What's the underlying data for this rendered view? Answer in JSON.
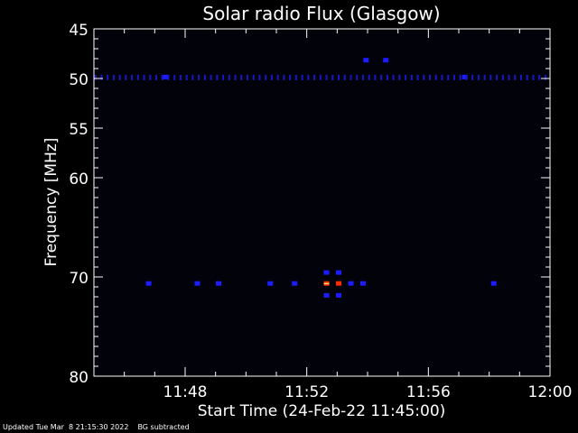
{
  "chart_data": {
    "type": "heatmap",
    "title": "Solar radio Flux (Glasgow)",
    "xlabel": "Start Time (24-Feb-22 11:45:00)",
    "ylabel": "Frequency [MHz]",
    "x_unit": "minutes after 11:45:00",
    "xlim": [
      0,
      15
    ],
    "ylim": [
      80,
      45
    ],
    "x_ticks": [
      {
        "value": 3,
        "label": "11:48"
      },
      {
        "value": 7,
        "label": "11:52"
      },
      {
        "value": 11,
        "label": "11:56"
      },
      {
        "value": 15,
        "label": "12:00"
      }
    ],
    "y_ticks": [
      45,
      50,
      55,
      60,
      70,
      80
    ],
    "background_color": "#000000",
    "colors": {
      "weak": "#1c1cff",
      "strong": "#ff2a00",
      "peak": "#ffe060"
    },
    "band_50mhz_intensity": "weak",
    "cells": [
      {
        "t": 8.95,
        "f": 48.2,
        "i": 1
      },
      {
        "t": 9.6,
        "f": 48.2,
        "i": 1
      },
      {
        "t": 2.35,
        "f": 49.9,
        "i": 1
      },
      {
        "t": 12.2,
        "f": 49.9,
        "i": 1
      },
      {
        "t": 1.8,
        "f": 70.7,
        "i": 1
      },
      {
        "t": 3.4,
        "f": 70.7,
        "i": 1
      },
      {
        "t": 4.1,
        "f": 70.7,
        "i": 1
      },
      {
        "t": 5.8,
        "f": 70.7,
        "i": 1
      },
      {
        "t": 6.6,
        "f": 70.7,
        "i": 1
      },
      {
        "t": 7.65,
        "f": 69.6,
        "i": 1
      },
      {
        "t": 7.65,
        "f": 70.7,
        "i": 3
      },
      {
        "t": 7.65,
        "f": 71.9,
        "i": 1
      },
      {
        "t": 8.05,
        "f": 69.6,
        "i": 1
      },
      {
        "t": 8.05,
        "f": 70.7,
        "i": 2
      },
      {
        "t": 8.05,
        "f": 71.9,
        "i": 1
      },
      {
        "t": 8.45,
        "f": 70.7,
        "i": 1
      },
      {
        "t": 8.85,
        "f": 70.7,
        "i": 1
      },
      {
        "t": 13.15,
        "f": 70.7,
        "i": 1
      }
    ]
  },
  "footer": {
    "updated": "Updated Tue Mar  8 21:15:30 2022",
    "bg_note": "BG subtracted"
  }
}
